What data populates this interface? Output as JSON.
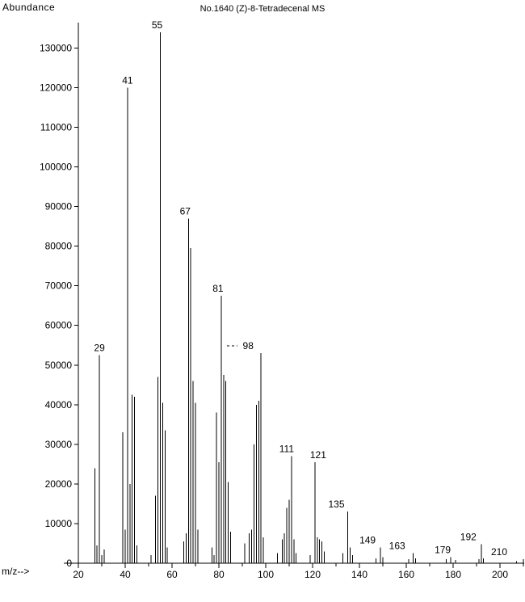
{
  "labels": {
    "y_axis_title": "Abundance",
    "title": "No.1640 (Z)-8-Tetradecenal MS",
    "x_axis_title": "m/z-->"
  },
  "colors": {
    "foreground": "#000000",
    "background": "#ffffff"
  },
  "chart_data": {
    "type": "bar",
    "chart_kind": "mass-spectrum",
    "title": "No.1640 (Z)-8-Tetradecenal MS",
    "xlabel": "m/z-->",
    "ylabel": "Abundance",
    "xlim": [
      14,
      212
    ],
    "ylim": [
      0,
      136000
    ],
    "grid": false,
    "legend": false,
    "x_ticks": [
      20,
      40,
      60,
      80,
      100,
      120,
      140,
      160,
      180,
      200
    ],
    "x_minor_tick_step": 10,
    "y_ticks": [
      0,
      10000,
      20000,
      30000,
      40000,
      50000,
      60000,
      70000,
      80000,
      90000,
      100000,
      110000,
      120000,
      130000
    ],
    "peaks": [
      [
        27,
        24000
      ],
      [
        28,
        4500
      ],
      [
        29,
        52500
      ],
      [
        30,
        2000
      ],
      [
        31,
        3500
      ],
      [
        39,
        33000
      ],
      [
        40,
        8500
      ],
      [
        41,
        120000
      ],
      [
        42,
        20000
      ],
      [
        43,
        42500
      ],
      [
        44,
        42000
      ],
      [
        45,
        4500
      ],
      [
        51,
        2000
      ],
      [
        53,
        17000
      ],
      [
        54,
        47000
      ],
      [
        55,
        134000
      ],
      [
        56,
        40500
      ],
      [
        57,
        33500
      ],
      [
        58,
        4000
      ],
      [
        65,
        5500
      ],
      [
        66,
        7500
      ],
      [
        67,
        87000
      ],
      [
        68,
        79500
      ],
      [
        69,
        46000
      ],
      [
        70,
        40500
      ],
      [
        71,
        8500
      ],
      [
        77,
        4000
      ],
      [
        78,
        2000
      ],
      [
        79,
        38000
      ],
      [
        80,
        25500
      ],
      [
        81,
        67500
      ],
      [
        82,
        47500
      ],
      [
        83,
        46000
      ],
      [
        84,
        20500
      ],
      [
        85,
        8000
      ],
      [
        91,
        5000
      ],
      [
        93,
        7500
      ],
      [
        94,
        8500
      ],
      [
        95,
        30000
      ],
      [
        96,
        40000
      ],
      [
        97,
        41000
      ],
      [
        98,
        53000
      ],
      [
        99,
        6500
      ],
      [
        105,
        2500
      ],
      [
        107,
        6000
      ],
      [
        108,
        7500
      ],
      [
        109,
        14000
      ],
      [
        110,
        16000
      ],
      [
        111,
        27000
      ],
      [
        112,
        6000
      ],
      [
        113,
        2500
      ],
      [
        119,
        2000
      ],
      [
        121,
        25500
      ],
      [
        122,
        6500
      ],
      [
        123,
        6000
      ],
      [
        124,
        5500
      ],
      [
        125,
        3000
      ],
      [
        133,
        2500
      ],
      [
        135,
        13000
      ],
      [
        136,
        4000
      ],
      [
        137,
        2000
      ],
      [
        147,
        1200
      ],
      [
        149,
        4000
      ],
      [
        150,
        1500
      ],
      [
        161,
        1000
      ],
      [
        163,
        2500
      ],
      [
        164,
        1200
      ],
      [
        177,
        1000
      ],
      [
        179,
        1500
      ],
      [
        181,
        800
      ],
      [
        191,
        1000
      ],
      [
        192,
        4800
      ],
      [
        193,
        1200
      ],
      [
        207,
        500
      ],
      [
        210,
        1000
      ]
    ],
    "labeled_peaks": [
      {
        "mz": 29,
        "text": "29",
        "dx": 0
      },
      {
        "mz": 41,
        "text": "41",
        "dx": 0
      },
      {
        "mz": 55,
        "text": "55",
        "dx": -4
      },
      {
        "mz": 67,
        "text": "67",
        "dx": -4
      },
      {
        "mz": 81,
        "text": "81",
        "dx": -4
      },
      {
        "mz": 98,
        "text": "98",
        "dx": -16,
        "leader": true
      },
      {
        "mz": 111,
        "text": "111",
        "dx": -6
      },
      {
        "mz": 121,
        "text": "121",
        "dx": 4
      },
      {
        "mz": 135,
        "text": "135",
        "dx": -14
      },
      {
        "mz": 149,
        "text": "149",
        "dx": -16
      },
      {
        "mz": 163,
        "text": "163",
        "dx": -20
      },
      {
        "mz": 179,
        "text": "179",
        "dx": -10
      },
      {
        "mz": 192,
        "text": "192",
        "dx": -16
      },
      {
        "mz": 210,
        "text": "210",
        "dx": -30
      }
    ]
  }
}
